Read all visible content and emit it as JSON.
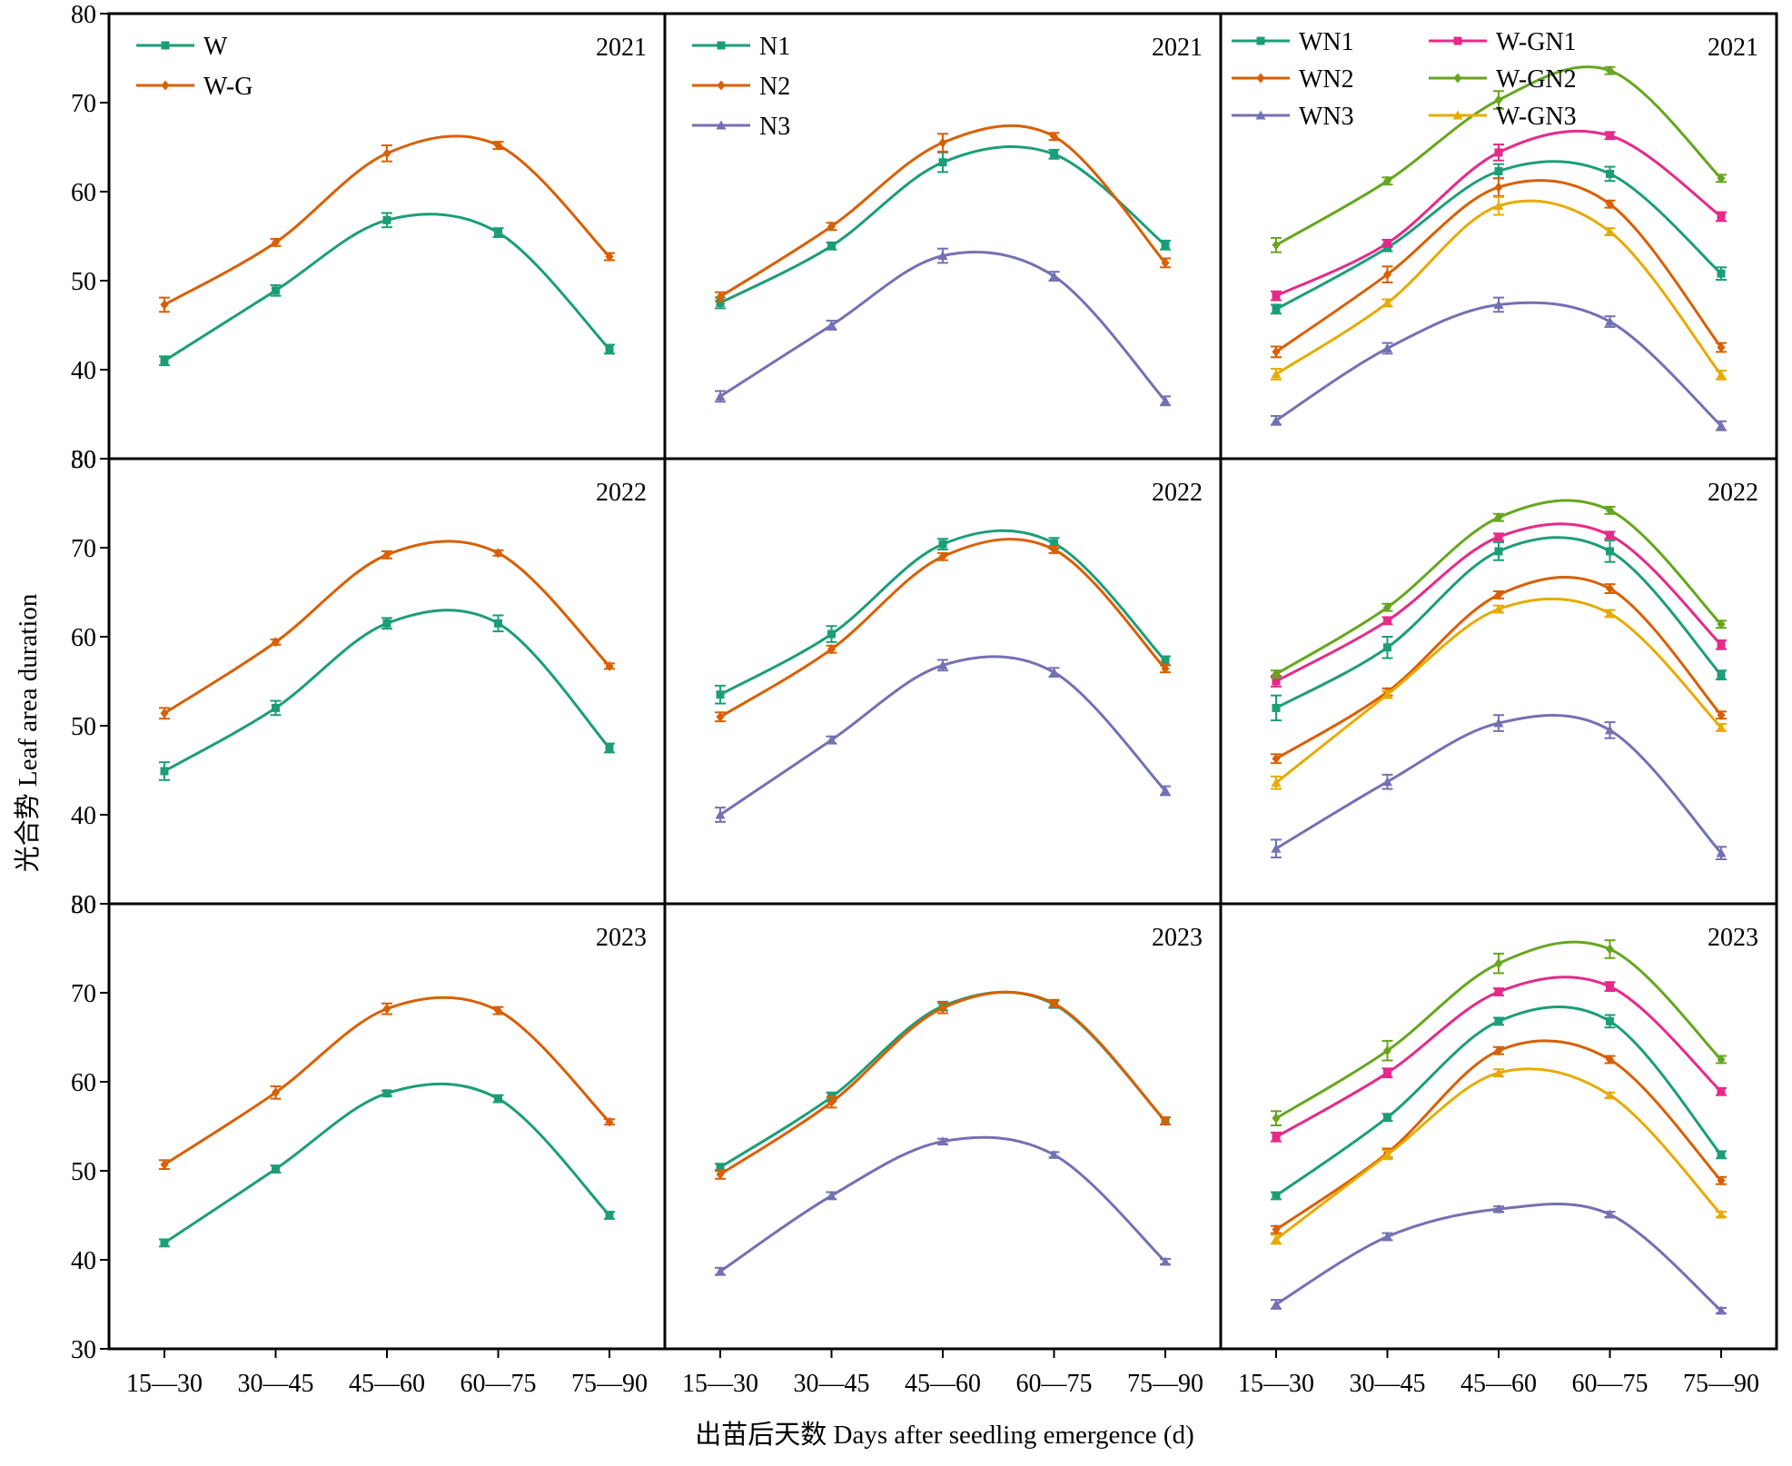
{
  "figure": {
    "ylabel": "光合势 Leaf area duration",
    "xlabel": "出苗后天数 Days after seedling emergence (d)"
  },
  "colors": {
    "teal": "#1b9e77",
    "orange": "#d95f02",
    "purple": "#7570b3",
    "magenta": "#e7298a",
    "green": "#66a61e",
    "gold": "#e6ab02"
  },
  "chart_data": [
    {
      "id": "r1c1",
      "type": "line",
      "row": 0,
      "col": 0,
      "year": "2021",
      "categories": [
        "15—30",
        "30—45",
        "45—60",
        "60—75",
        "75—90"
      ],
      "ylim": [
        30,
        80
      ],
      "yticks": [
        30,
        40,
        50,
        60,
        70,
        80
      ],
      "legend": "top-left",
      "legend_columns": 1,
      "series": [
        {
          "name": "W",
          "color": "#1b9e77",
          "values": [
            41.0,
            48.9,
            56.8,
            55.4,
            42.3
          ],
          "errors": [
            0.5,
            0.6,
            0.8,
            0.5,
            0.5
          ]
        },
        {
          "name": "W-G",
          "color": "#d95f02",
          "values": [
            47.3,
            54.3,
            64.3,
            65.2,
            52.7
          ],
          "errors": [
            0.8,
            0.4,
            0.9,
            0.4,
            0.4
          ]
        }
      ]
    },
    {
      "id": "r1c2",
      "type": "line",
      "row": 0,
      "col": 1,
      "year": "2021",
      "categories": [
        "15—30",
        "30—45",
        "45—60",
        "60—75",
        "75—90"
      ],
      "ylim": [
        30,
        80
      ],
      "yticks": [
        30,
        40,
        50,
        60,
        70,
        80
      ],
      "legend": "top-left",
      "legend_columns": 1,
      "series": [
        {
          "name": "N1",
          "color": "#1b9e77",
          "values": [
            47.5,
            53.9,
            63.3,
            64.2,
            54.0
          ],
          "errors": [
            0.6,
            0.4,
            1.1,
            0.5,
            0.5
          ]
        },
        {
          "name": "N2",
          "color": "#d95f02",
          "values": [
            48.2,
            56.1,
            65.5,
            66.2,
            52.0
          ],
          "errors": [
            0.5,
            0.4,
            1.0,
            0.4,
            0.5
          ]
        },
        {
          "name": "N3",
          "color": "#7570b3",
          "values": [
            37.0,
            45.0,
            52.8,
            50.5,
            36.5
          ],
          "errors": [
            0.6,
            0.5,
            0.8,
            0.5,
            0.5
          ]
        }
      ]
    },
    {
      "id": "r1c3",
      "type": "line",
      "row": 0,
      "col": 2,
      "year": "2021",
      "categories": [
        "15—30",
        "30—45",
        "45—60",
        "60—75",
        "75—90"
      ],
      "ylim": [
        30,
        80
      ],
      "yticks": [
        30,
        40,
        50,
        60,
        70,
        80
      ],
      "legend": "top-left",
      "legend_columns": 2,
      "series": [
        {
          "name": "WN1",
          "color": "#1b9e77",
          "values": [
            46.8,
            53.7,
            62.3,
            62.0,
            50.8
          ],
          "errors": [
            0.5,
            0.4,
            0.8,
            0.8,
            0.7
          ]
        },
        {
          "name": "WN2",
          "color": "#d95f02",
          "values": [
            42.0,
            50.7,
            60.5,
            58.6,
            42.5
          ],
          "errors": [
            0.6,
            0.9,
            1.0,
            0.4,
            0.5
          ]
        },
        {
          "name": "WN3",
          "color": "#7570b3",
          "values": [
            34.3,
            42.4,
            47.3,
            45.4,
            33.7
          ],
          "errors": [
            0.5,
            0.6,
            0.8,
            0.6,
            0.5
          ]
        },
        {
          "name": "W-GN1",
          "color": "#e7298a",
          "values": [
            48.3,
            54.2,
            64.4,
            66.3,
            57.2
          ],
          "errors": [
            0.5,
            0.4,
            0.9,
            0.4,
            0.5
          ]
        },
        {
          "name": "W-GN2",
          "color": "#66a61e",
          "values": [
            54.0,
            61.2,
            70.3,
            73.6,
            61.5
          ],
          "errors": [
            0.8,
            0.4,
            1.0,
            0.4,
            0.4
          ]
        },
        {
          "name": "W-GN3",
          "color": "#e6ab02",
          "values": [
            39.5,
            47.5,
            58.4,
            55.5,
            39.4
          ],
          "errors": [
            0.6,
            0.4,
            1.0,
            0.4,
            0.5
          ]
        }
      ]
    },
    {
      "id": "r2c1",
      "type": "line",
      "row": 1,
      "col": 0,
      "year": "2022",
      "categories": [
        "15—30",
        "30—45",
        "45—60",
        "60—75",
        "75—90"
      ],
      "ylim": [
        30,
        80
      ],
      "yticks": [
        30,
        40,
        50,
        60,
        70,
        80
      ],
      "legend": "none",
      "legend_columns": 1,
      "series": [
        {
          "name": "W",
          "color": "#1b9e77",
          "values": [
            44.9,
            52.0,
            61.5,
            61.5,
            47.5
          ],
          "errors": [
            1.0,
            0.8,
            0.6,
            0.9,
            0.5
          ]
        },
        {
          "name": "W-G",
          "color": "#d95f02",
          "values": [
            51.4,
            59.4,
            69.2,
            69.4,
            56.7
          ],
          "errors": [
            0.6,
            0.3,
            0.4,
            0.3,
            0.3
          ]
        }
      ]
    },
    {
      "id": "r2c2",
      "type": "line",
      "row": 1,
      "col": 1,
      "year": "2022",
      "categories": [
        "15—30",
        "30—45",
        "45—60",
        "60—75",
        "75—90"
      ],
      "ylim": [
        30,
        80
      ],
      "yticks": [
        30,
        40,
        50,
        60,
        70,
        80
      ],
      "legend": "none",
      "legend_columns": 1,
      "series": [
        {
          "name": "N1",
          "color": "#1b9e77",
          "values": [
            53.5,
            60.3,
            70.4,
            70.5,
            57.3
          ],
          "errors": [
            1.0,
            0.9,
            0.6,
            0.6,
            0.5
          ]
        },
        {
          "name": "N2",
          "color": "#d95f02",
          "values": [
            51.0,
            58.6,
            69.0,
            69.8,
            56.4
          ],
          "errors": [
            0.5,
            0.4,
            0.4,
            0.4,
            0.4
          ]
        },
        {
          "name": "N3",
          "color": "#7570b3",
          "values": [
            40.0,
            48.4,
            56.8,
            56.0,
            42.7
          ],
          "errors": [
            0.8,
            0.4,
            0.6,
            0.5,
            0.5
          ]
        }
      ]
    },
    {
      "id": "r2c3",
      "type": "line",
      "row": 1,
      "col": 2,
      "year": "2022",
      "categories": [
        "15—30",
        "30—45",
        "45—60",
        "60—75",
        "75—90"
      ],
      "ylim": [
        30,
        80
      ],
      "yticks": [
        30,
        40,
        50,
        60,
        70,
        80
      ],
      "legend": "none",
      "legend_columns": 2,
      "series": [
        {
          "name": "WN1",
          "color": "#1b9e77",
          "values": [
            52.0,
            58.8,
            69.6,
            69.6,
            55.7
          ],
          "errors": [
            1.4,
            1.2,
            1.0,
            1.2,
            0.5
          ]
        },
        {
          "name": "WN2",
          "color": "#d95f02",
          "values": [
            46.3,
            53.8,
            64.7,
            65.4,
            51.2
          ],
          "errors": [
            0.5,
            0.4,
            0.4,
            0.5,
            0.4
          ]
        },
        {
          "name": "WN3",
          "color": "#7570b3",
          "values": [
            36.2,
            43.7,
            50.3,
            49.5,
            35.7
          ],
          "errors": [
            1.0,
            0.8,
            0.9,
            0.9,
            0.7
          ]
        },
        {
          "name": "W-GN1",
          "color": "#e7298a",
          "values": [
            55.0,
            61.8,
            71.2,
            71.4,
            59.1
          ],
          "errors": [
            0.6,
            0.4,
            0.4,
            0.4,
            0.5
          ]
        },
        {
          "name": "W-GN2",
          "color": "#66a61e",
          "values": [
            55.8,
            63.3,
            73.4,
            74.2,
            61.4
          ],
          "errors": [
            0.4,
            0.4,
            0.4,
            0.4,
            0.4
          ]
        },
        {
          "name": "W-GN3",
          "color": "#e6ab02",
          "values": [
            43.6,
            53.5,
            63.1,
            62.6,
            49.8
          ],
          "errors": [
            0.7,
            0.4,
            0.4,
            0.4,
            0.4
          ]
        }
      ]
    },
    {
      "id": "r3c1",
      "type": "line",
      "row": 2,
      "col": 0,
      "year": "2023",
      "categories": [
        "15—30",
        "30—45",
        "45—60",
        "60—75",
        "75—90"
      ],
      "ylim": [
        30,
        80
      ],
      "yticks": [
        30,
        40,
        50,
        60,
        70,
        80
      ],
      "legend": "none",
      "legend_columns": 1,
      "series": [
        {
          "name": "W",
          "color": "#1b9e77",
          "values": [
            41.9,
            50.2,
            58.7,
            58.1,
            45.0
          ],
          "errors": [
            0.4,
            0.4,
            0.3,
            0.4,
            0.4
          ]
        },
        {
          "name": "W-G",
          "color": "#d95f02",
          "values": [
            50.7,
            58.8,
            68.2,
            68.0,
            55.5
          ],
          "errors": [
            0.5,
            0.7,
            0.6,
            0.4,
            0.3
          ]
        }
      ]
    },
    {
      "id": "r3c2",
      "type": "line",
      "row": 2,
      "col": 1,
      "year": "2023",
      "categories": [
        "15—30",
        "30—45",
        "45—60",
        "60—75",
        "75—90"
      ],
      "ylim": [
        30,
        80
      ],
      "yticks": [
        30,
        40,
        50,
        60,
        70,
        80
      ],
      "legend": "none",
      "legend_columns": 1,
      "series": [
        {
          "name": "N1",
          "color": "#1b9e77",
          "values": [
            50.4,
            58.3,
            68.5,
            68.7,
            55.6
          ],
          "errors": [
            0.4,
            0.5,
            0.5,
            0.4,
            0.4
          ]
        },
        {
          "name": "N2",
          "color": "#d95f02",
          "values": [
            49.6,
            57.7,
            68.3,
            68.8,
            55.6
          ],
          "errors": [
            0.5,
            0.6,
            0.6,
            0.4,
            0.4
          ]
        },
        {
          "name": "N3",
          "color": "#7570b3",
          "values": [
            38.7,
            47.2,
            53.3,
            51.8,
            39.8
          ],
          "errors": [
            0.4,
            0.4,
            0.3,
            0.3,
            0.3
          ]
        }
      ]
    },
    {
      "id": "r3c3",
      "type": "line",
      "row": 2,
      "col": 2,
      "year": "2023",
      "categories": [
        "15—30",
        "30—45",
        "45—60",
        "60—75",
        "75—90"
      ],
      "ylim": [
        30,
        80
      ],
      "yticks": [
        30,
        40,
        50,
        60,
        70,
        80
      ],
      "legend": "none",
      "legend_columns": 2,
      "series": [
        {
          "name": "WN1",
          "color": "#1b9e77",
          "values": [
            47.2,
            56.0,
            66.8,
            66.8,
            51.8
          ],
          "errors": [
            0.4,
            0.4,
            0.4,
            0.7,
            0.4
          ]
        },
        {
          "name": "WN2",
          "color": "#d95f02",
          "values": [
            43.4,
            52.0,
            63.5,
            62.5,
            48.9
          ],
          "errors": [
            0.4,
            0.5,
            0.4,
            0.4,
            0.4
          ]
        },
        {
          "name": "WN3",
          "color": "#7570b3",
          "values": [
            35.0,
            42.6,
            45.7,
            45.1,
            34.3
          ],
          "errors": [
            0.5,
            0.4,
            0.3,
            0.3,
            0.3
          ]
        },
        {
          "name": "W-GN1",
          "color": "#e7298a",
          "values": [
            53.8,
            61.0,
            70.1,
            70.7,
            58.9
          ],
          "errors": [
            0.5,
            0.5,
            0.4,
            0.5,
            0.4
          ]
        },
        {
          "name": "W-GN2",
          "color": "#66a61e",
          "values": [
            55.9,
            63.5,
            73.3,
            74.9,
            62.5
          ],
          "errors": [
            0.8,
            1.1,
            1.1,
            1.0,
            0.4
          ]
        },
        {
          "name": "W-GN3",
          "color": "#e6ab02",
          "values": [
            42.3,
            51.8,
            61.0,
            58.5,
            45.1
          ],
          "errors": [
            0.5,
            0.5,
            0.4,
            0.3,
            0.3
          ]
        }
      ]
    }
  ]
}
